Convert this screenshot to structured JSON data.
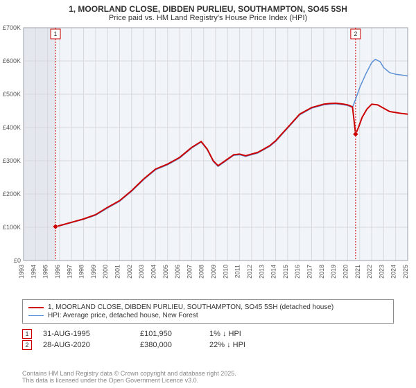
{
  "title_line1": "1, MOORLAND CLOSE, DIBDEN PURLIEU, SOUTHAMPTON, SO45 5SH",
  "title_line2": "Price paid vs. HM Land Registry's House Price Index (HPI)",
  "chart": {
    "type": "line",
    "background_color": "#ffffff",
    "plot_background_color": "#f1f4f8",
    "grid_color": "#d7d9dc",
    "axis_font_size": 9,
    "x": {
      "min": 1993,
      "max": 2025,
      "ticks": [
        1993,
        1994,
        1995,
        1996,
        1997,
        1998,
        1999,
        2000,
        2001,
        2002,
        2003,
        2004,
        2005,
        2006,
        2007,
        2008,
        2009,
        2010,
        2011,
        2012,
        2013,
        2014,
        2015,
        2016,
        2017,
        2018,
        2019,
        2020,
        2021,
        2022,
        2023,
        2024,
        2025
      ],
      "tick_label_rotate": -90
    },
    "y": {
      "min": 0,
      "max": 700000,
      "ticks": [
        0,
        100000,
        200000,
        300000,
        400000,
        500000,
        600000,
        700000
      ],
      "tick_labels": [
        "£0",
        "£100K",
        "£200K",
        "£300K",
        "£400K",
        "£500K",
        "£600K",
        "£700K"
      ]
    },
    "series": [
      {
        "name": "property",
        "label": "1, MOORLAND CLOSE, DIBDEN PURLIEU, SOUTHAMPTON, SO45 5SH (detached house)",
        "color": "#cc0000",
        "line_width": 2,
        "data": [
          [
            1995.66,
            101950
          ],
          [
            1996,
            105000
          ],
          [
            1997,
            115000
          ],
          [
            1998,
            125000
          ],
          [
            1999,
            138000
          ],
          [
            2000,
            160000
          ],
          [
            2001,
            180000
          ],
          [
            2002,
            210000
          ],
          [
            2003,
            245000
          ],
          [
            2004,
            275000
          ],
          [
            2005,
            290000
          ],
          [
            2006,
            310000
          ],
          [
            2007,
            340000
          ],
          [
            2007.8,
            358000
          ],
          [
            2008.3,
            335000
          ],
          [
            2008.8,
            300000
          ],
          [
            2009.2,
            285000
          ],
          [
            2009.8,
            300000
          ],
          [
            2010.5,
            318000
          ],
          [
            2011,
            320000
          ],
          [
            2011.5,
            315000
          ],
          [
            2012,
            320000
          ],
          [
            2012.5,
            325000
          ],
          [
            2013,
            335000
          ],
          [
            2013.5,
            345000
          ],
          [
            2014,
            360000
          ],
          [
            2014.5,
            380000
          ],
          [
            2015,
            400000
          ],
          [
            2015.5,
            420000
          ],
          [
            2016,
            440000
          ],
          [
            2016.5,
            450000
          ],
          [
            2017,
            460000
          ],
          [
            2017.5,
            465000
          ],
          [
            2018,
            470000
          ],
          [
            2018.5,
            472000
          ],
          [
            2019,
            473000
          ],
          [
            2019.5,
            471000
          ],
          [
            2020,
            468000
          ],
          [
            2020.4,
            462000
          ],
          [
            2020.66,
            380000
          ],
          [
            2020.9,
            400000
          ],
          [
            2021.2,
            430000
          ],
          [
            2021.6,
            455000
          ],
          [
            2022,
            470000
          ],
          [
            2022.5,
            468000
          ],
          [
            2023,
            458000
          ],
          [
            2023.5,
            448000
          ],
          [
            2024,
            445000
          ],
          [
            2024.5,
            442000
          ],
          [
            2025,
            440000
          ]
        ]
      },
      {
        "name": "hpi",
        "label": "HPI: Average price, detached house, New Forest",
        "color": "#5b8fd6",
        "line_width": 1.5,
        "data": [
          [
            1995.66,
            101950
          ],
          [
            1996,
            104000
          ],
          [
            1997,
            114000
          ],
          [
            1998,
            124000
          ],
          [
            1999,
            136000
          ],
          [
            2000,
            158000
          ],
          [
            2001,
            178000
          ],
          [
            2002,
            208000
          ],
          [
            2003,
            243000
          ],
          [
            2004,
            273000
          ],
          [
            2005,
            288000
          ],
          [
            2006,
            308000
          ],
          [
            2007,
            338000
          ],
          [
            2007.8,
            356000
          ],
          [
            2008.3,
            333000
          ],
          [
            2008.8,
            298000
          ],
          [
            2009.2,
            283000
          ],
          [
            2009.8,
            298000
          ],
          [
            2010.5,
            316000
          ],
          [
            2011,
            318000
          ],
          [
            2011.5,
            313000
          ],
          [
            2012,
            318000
          ],
          [
            2012.5,
            323000
          ],
          [
            2013,
            333000
          ],
          [
            2013.5,
            343000
          ],
          [
            2014,
            358000
          ],
          [
            2014.5,
            378000
          ],
          [
            2015,
            398000
          ],
          [
            2015.5,
            418000
          ],
          [
            2016,
            438000
          ],
          [
            2016.5,
            448000
          ],
          [
            2017,
            458000
          ],
          [
            2017.5,
            463000
          ],
          [
            2018,
            468000
          ],
          [
            2018.5,
            470000
          ],
          [
            2019,
            471000
          ],
          [
            2019.5,
            469000
          ],
          [
            2020,
            466000
          ],
          [
            2020.4,
            460000
          ],
          [
            2020.66,
            485000
          ],
          [
            2021,
            520000
          ],
          [
            2021.5,
            560000
          ],
          [
            2022,
            595000
          ],
          [
            2022.3,
            605000
          ],
          [
            2022.7,
            598000
          ],
          [
            2023,
            580000
          ],
          [
            2023.5,
            565000
          ],
          [
            2024,
            560000
          ],
          [
            2024.5,
            558000
          ],
          [
            2025,
            555000
          ]
        ]
      }
    ],
    "events": [
      {
        "n": "1",
        "x": 1995.66,
        "date": "31-AUG-1995",
        "price": "£101,950",
        "pct": "1% ↓ HPI",
        "color": "#cc0000"
      },
      {
        "n": "2",
        "x": 2020.66,
        "date": "28-AUG-2020",
        "price": "£380,000",
        "pct": "22% ↓ HPI",
        "color": "#cc0000"
      }
    ],
    "shaded_x_range": [
      1993,
      1995.66
    ],
    "shaded_color": "#e4e8ee"
  },
  "legend": {
    "border_color": "#888888"
  },
  "footer": {
    "line1": "Contains HM Land Registry data © Crown copyright and database right 2025.",
    "line2": "This data is licensed under the Open Government Licence v3.0."
  }
}
